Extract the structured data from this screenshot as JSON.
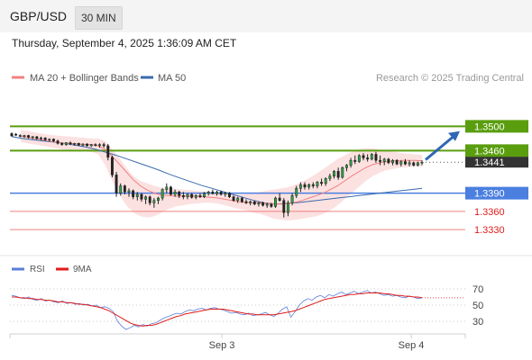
{
  "header": {
    "pair": "GBP/USD",
    "timeframe": "30 MIN"
  },
  "timestamp": "Thursday, September 4, 2025 1:36:09 AM CET",
  "legend": {
    "items": [
      {
        "label": "MA 20 + Bollinger Bands",
        "color": "#f08080"
      },
      {
        "label": "MA 50",
        "color": "#3a6aad"
      }
    ],
    "credit": "Research © 2025 Trading Central"
  },
  "rsi_legend": {
    "items": [
      {
        "label": "RSI",
        "color": "#5b7fd6"
      },
      {
        "label": "9MA",
        "color": "#e21b1b"
      }
    ]
  },
  "colors": {
    "resistance": "#5a9e0f",
    "support_blue": "#4a7fe0",
    "support_red": "#f08080",
    "current": "#333333",
    "arrow": "#2f67b2",
    "band_fill": "#fcdede",
    "ma20": "#f08080",
    "ma50": "#3a6aad",
    "bull": "#28a745",
    "bear": "#222222"
  },
  "chart_data": [
    {
      "type": "candlestick",
      "title": "GBP/USD",
      "timeframe": "30 MIN",
      "x_ticks": [
        "Sep 3",
        "Sep 4"
      ],
      "ylim": [
        1.3305,
        1.3545
      ],
      "current_price": 1.3441,
      "levels": [
        {
          "value": 1.35,
          "label": "1.3500",
          "kind": "resistance"
        },
        {
          "value": 1.346,
          "label": "1.3460",
          "kind": "resistance"
        },
        {
          "value": 1.339,
          "label": "1.3390",
          "kind": "support"
        },
        {
          "value": 1.336,
          "label": "1.3360",
          "kind": "support"
        },
        {
          "value": 1.333,
          "label": "1.3330",
          "kind": "support"
        }
      ],
      "candles": [
        [
          1.3488,
          1.349,
          1.3486,
          1.3484
        ],
        [
          1.3487,
          1.3489,
          1.3484,
          1.3486
        ],
        [
          1.3485,
          1.3487,
          1.3482,
          1.3484
        ],
        [
          1.3484,
          1.3486,
          1.3481,
          1.3485
        ],
        [
          1.3485,
          1.3486,
          1.348,
          1.3482
        ],
        [
          1.3482,
          1.3484,
          1.3479,
          1.3483
        ],
        [
          1.3483,
          1.3484,
          1.3478,
          1.348
        ],
        [
          1.348,
          1.3483,
          1.3477,
          1.3481
        ],
        [
          1.3481,
          1.3482,
          1.3476,
          1.3478
        ],
        [
          1.3478,
          1.348,
          1.3475,
          1.3479
        ],
        [
          1.3479,
          1.348,
          1.3474,
          1.3476
        ],
        [
          1.3476,
          1.3478,
          1.347,
          1.3472
        ],
        [
          1.3472,
          1.3474,
          1.3468,
          1.347
        ],
        [
          1.347,
          1.3474,
          1.3468,
          1.3473
        ],
        [
          1.3473,
          1.3475,
          1.3469,
          1.3471
        ],
        [
          1.3471,
          1.3473,
          1.3468,
          1.3472
        ],
        [
          1.3472,
          1.3473,
          1.3468,
          1.3469
        ],
        [
          1.3469,
          1.3472,
          1.3467,
          1.3471
        ],
        [
          1.3471,
          1.3472,
          1.3467,
          1.3468
        ],
        [
          1.3468,
          1.3471,
          1.3466,
          1.347
        ],
        [
          1.347,
          1.3472,
          1.3467,
          1.3469
        ],
        [
          1.3469,
          1.3472,
          1.3465,
          1.347
        ],
        [
          1.347,
          1.3473,
          1.3465,
          1.3468
        ],
        [
          1.3468,
          1.3471,
          1.3444,
          1.3449
        ],
        [
          1.3449,
          1.3452,
          1.3416,
          1.342
        ],
        [
          1.342,
          1.3425,
          1.3384,
          1.339
        ],
        [
          1.339,
          1.3406,
          1.3386,
          1.3402
        ],
        [
          1.3402,
          1.3404,
          1.3388,
          1.3392
        ],
        [
          1.3392,
          1.3398,
          1.3384,
          1.3394
        ],
        [
          1.3394,
          1.3396,
          1.338,
          1.3384
        ],
        [
          1.3384,
          1.3392,
          1.3378,
          1.3388
        ],
        [
          1.3388,
          1.339,
          1.3376,
          1.338
        ],
        [
          1.338,
          1.3386,
          1.3372,
          1.3384
        ],
        [
          1.3384,
          1.3386,
          1.337,
          1.3374
        ],
        [
          1.3374,
          1.3382,
          1.3366,
          1.3378
        ],
        [
          1.3378,
          1.3384,
          1.3372,
          1.3382
        ],
        [
          1.3382,
          1.3398,
          1.3378,
          1.3396
        ],
        [
          1.3396,
          1.3406,
          1.339,
          1.34
        ],
        [
          1.34,
          1.3402,
          1.3386,
          1.3388
        ],
        [
          1.3388,
          1.3396,
          1.3384,
          1.3392
        ],
        [
          1.3392,
          1.3394,
          1.3382,
          1.3386
        ],
        [
          1.3386,
          1.3392,
          1.338,
          1.3384
        ],
        [
          1.3384,
          1.339,
          1.338,
          1.3388
        ],
        [
          1.3388,
          1.339,
          1.3381,
          1.3383
        ],
        [
          1.3383,
          1.3388,
          1.338,
          1.3386
        ],
        [
          1.3386,
          1.339,
          1.3382,
          1.3384
        ],
        [
          1.3384,
          1.3392,
          1.3382,
          1.339
        ],
        [
          1.339,
          1.3394,
          1.3386,
          1.3392
        ],
        [
          1.3392,
          1.3396,
          1.3388,
          1.3389
        ],
        [
          1.3389,
          1.3394,
          1.3386,
          1.3392
        ],
        [
          1.3392,
          1.3394,
          1.3386,
          1.3388
        ],
        [
          1.3388,
          1.3392,
          1.3384,
          1.339
        ],
        [
          1.339,
          1.3392,
          1.3382,
          1.3384
        ],
        [
          1.3384,
          1.3386,
          1.3376,
          1.3378
        ],
        [
          1.3378,
          1.3384,
          1.3374,
          1.3382
        ],
        [
          1.3382,
          1.3384,
          1.3374,
          1.3376
        ],
        [
          1.3376,
          1.338,
          1.3372,
          1.3374
        ],
        [
          1.3374,
          1.3378,
          1.337,
          1.3376
        ],
        [
          1.3376,
          1.3378,
          1.337,
          1.3372
        ],
        [
          1.3372,
          1.3376,
          1.3368,
          1.3374
        ],
        [
          1.3374,
          1.3376,
          1.3368,
          1.337
        ],
        [
          1.337,
          1.3374,
          1.3366,
          1.3372
        ],
        [
          1.3372,
          1.3374,
          1.3366,
          1.3368
        ],
        [
          1.3368,
          1.3384,
          1.3366,
          1.3382
        ],
        [
          1.3382,
          1.339,
          1.3376,
          1.3378
        ],
        [
          1.3378,
          1.3382,
          1.335,
          1.3358
        ],
        [
          1.3358,
          1.3378,
          1.3352,
          1.3374
        ],
        [
          1.3374,
          1.339,
          1.337,
          1.3386
        ],
        [
          1.3386,
          1.3402,
          1.3382,
          1.3398
        ],
        [
          1.3398,
          1.3408,
          1.3392,
          1.3404
        ],
        [
          1.3404,
          1.3408,
          1.3396,
          1.34
        ],
        [
          1.34,
          1.3406,
          1.3396,
          1.3404
        ],
        [
          1.3404,
          1.3408,
          1.3398,
          1.3402
        ],
        [
          1.3402,
          1.341,
          1.3398,
          1.3408
        ],
        [
          1.3408,
          1.3414,
          1.3402,
          1.3406
        ],
        [
          1.3406,
          1.3416,
          1.3402,
          1.3414
        ],
        [
          1.3414,
          1.3422,
          1.341,
          1.3418
        ],
        [
          1.3418,
          1.3428,
          1.3414,
          1.3426
        ],
        [
          1.3426,
          1.3432,
          1.3412,
          1.3416
        ],
        [
          1.3416,
          1.3434,
          1.3414,
          1.3432
        ],
        [
          1.3432,
          1.3438,
          1.3426,
          1.3436
        ],
        [
          1.3436,
          1.3448,
          1.3432,
          1.3444
        ],
        [
          1.3444,
          1.3452,
          1.3438,
          1.3442
        ],
        [
          1.3442,
          1.3454,
          1.344,
          1.3452
        ],
        [
          1.3452,
          1.3456,
          1.3444,
          1.3448
        ],
        [
          1.3448,
          1.3454,
          1.3442,
          1.3446
        ],
        [
          1.3446,
          1.3456,
          1.3444,
          1.3454
        ],
        [
          1.3454,
          1.3458,
          1.344,
          1.3444
        ],
        [
          1.3444,
          1.3452,
          1.3436,
          1.3442
        ],
        [
          1.3442,
          1.3448,
          1.3436,
          1.3446
        ],
        [
          1.3446,
          1.3448,
          1.3438,
          1.344
        ],
        [
          1.344,
          1.3446,
          1.3436,
          1.3444
        ],
        [
          1.3444,
          1.3446,
          1.3436,
          1.3438
        ],
        [
          1.3438,
          1.3444,
          1.3434,
          1.3442
        ],
        [
          1.3442,
          1.3446,
          1.3436,
          1.3438
        ],
        [
          1.3438,
          1.3444,
          1.3434,
          1.344
        ],
        [
          1.344,
          1.3442,
          1.3434,
          1.3436
        ],
        [
          1.3436,
          1.3442,
          1.3434,
          1.344
        ],
        [
          1.344,
          1.3444,
          1.3436,
          1.3441
        ]
      ],
      "ma20": [
        1.3484,
        1.3482,
        1.348,
        1.3478,
        1.3476,
        1.3474,
        1.3472,
        1.3472,
        1.3471,
        1.347,
        1.347,
        1.3468,
        1.3462,
        1.345,
        1.3438,
        1.3425,
        1.3412,
        1.3402,
        1.3395,
        1.339,
        1.3387,
        1.3386,
        1.3385,
        1.3385,
        1.3385,
        1.3385,
        1.3384,
        1.3383,
        1.3382,
        1.338,
        1.3378,
        1.3376,
        1.3375,
        1.3374,
        1.3374,
        1.3373,
        1.3372,
        1.3372,
        1.3373,
        1.3375,
        1.3378,
        1.3382,
        1.3386,
        1.339,
        1.3396,
        1.3402,
        1.341,
        1.3418,
        1.3425,
        1.3432,
        1.3437,
        1.344,
        1.3442,
        1.3443,
        1.3444,
        1.3444,
        1.3444,
        1.3443
      ],
      "bb_upper": [
        1.3494,
        1.3492,
        1.349,
        1.3488,
        1.3486,
        1.3485,
        1.3484,
        1.3483,
        1.3482,
        1.3481,
        1.348,
        1.348,
        1.3476,
        1.3462,
        1.3448,
        1.3432,
        1.3418,
        1.341,
        1.3406,
        1.3402,
        1.3399,
        1.3398,
        1.3397,
        1.3396,
        1.3395,
        1.3394,
        1.3393,
        1.3392,
        1.3391,
        1.339,
        1.3389,
        1.3388,
        1.3388,
        1.339,
        1.3392,
        1.3394,
        1.3396,
        1.3398,
        1.34,
        1.3404,
        1.3409,
        1.3415,
        1.3422,
        1.343,
        1.3438,
        1.3446,
        1.3452,
        1.3458,
        1.3462,
        1.3464,
        1.3464,
        1.3462,
        1.346,
        1.3458,
        1.3456,
        1.3455,
        1.3454,
        1.3453
      ],
      "bb_lower": [
        1.3474,
        1.3472,
        1.347,
        1.3468,
        1.3466,
        1.3464,
        1.3462,
        1.3461,
        1.346,
        1.3459,
        1.3458,
        1.3454,
        1.3436,
        1.341,
        1.3388,
        1.337,
        1.3358,
        1.3352,
        1.335,
        1.3352,
        1.3358,
        1.3364,
        1.3368,
        1.337,
        1.3372,
        1.3373,
        1.3374,
        1.3374,
        1.3373,
        1.337,
        1.3367,
        1.3364,
        1.3362,
        1.3358,
        1.3356,
        1.3352,
        1.3348,
        1.3346,
        1.3345,
        1.3346,
        1.3348,
        1.335,
        1.3352,
        1.3356,
        1.3362,
        1.337,
        1.338,
        1.339,
        1.34,
        1.341,
        1.3418,
        1.3424,
        1.3428,
        1.343,
        1.3432,
        1.3433,
        1.3434,
        1.3434
      ],
      "ma50": [
        1.3483,
        1.348,
        1.3478,
        1.3476,
        1.3474,
        1.3472,
        1.3469,
        1.3466,
        1.3462,
        1.3457,
        1.3452,
        1.3446,
        1.344,
        1.3434,
        1.3428,
        1.3421,
        1.3415,
        1.3409,
        1.3403,
        1.3398,
        1.3393,
        1.3388,
        1.3383,
        1.3378,
        1.3374,
        1.3372,
        1.3373,
        1.3374,
        1.3376,
        1.3378,
        1.338,
        1.3382,
        1.3384,
        1.3386,
        1.3388,
        1.339,
        1.3392,
        1.3394,
        1.3396,
        1.3398
      ],
      "arrow": {
        "from_value": 1.3445,
        "to_value": 1.3492
      }
    },
    {
      "type": "line",
      "name": "RSI panel",
      "ylim": [
        20,
        80
      ],
      "y_ticks": [
        70,
        50,
        30
      ],
      "series": [
        {
          "name": "RSI",
          "values": [
            62,
            61,
            59,
            58,
            60,
            57,
            56,
            58,
            55,
            56,
            54,
            53,
            55,
            52,
            53,
            51,
            52,
            50,
            51,
            49,
            50,
            47,
            48,
            46,
            42,
            30,
            24,
            20,
            22,
            25,
            23,
            26,
            24,
            27,
            28,
            31,
            34,
            36,
            38,
            40,
            39,
            42,
            44,
            43,
            45,
            46,
            44,
            46,
            47,
            45,
            44,
            42,
            40,
            41,
            39,
            38,
            40,
            37,
            38,
            39,
            41,
            38,
            36,
            40,
            45,
            48,
            35,
            42,
            50,
            55,
            58,
            56,
            60,
            62,
            59,
            63,
            61,
            64,
            66,
            63,
            65,
            67,
            64,
            66,
            68,
            65,
            66,
            64,
            62,
            63,
            61,
            62,
            60,
            59,
            61,
            60,
            58,
            59
          ]
        },
        {
          "name": "9MA",
          "values": [
            60,
            60,
            59,
            59,
            58,
            58,
            57,
            57,
            56,
            56,
            55,
            54,
            54,
            53,
            53,
            52,
            51,
            51,
            50,
            49,
            48,
            47,
            45,
            43,
            40,
            37,
            34,
            31,
            28,
            26,
            25,
            24,
            25,
            25,
            26,
            28,
            30,
            32,
            34,
            36,
            37,
            39,
            40,
            41,
            42,
            43,
            44,
            45,
            45,
            45,
            45,
            44,
            43,
            42,
            41,
            40,
            39,
            39,
            38,
            38,
            38,
            38,
            38,
            39,
            40,
            41,
            42,
            43,
            45,
            47,
            49,
            51,
            53,
            55,
            57,
            58,
            59,
            60,
            61,
            62,
            63,
            63,
            64,
            64,
            65,
            65,
            65,
            65,
            64,
            64,
            63,
            62,
            62,
            61,
            61,
            60,
            60,
            59
          ]
        }
      ]
    }
  ]
}
